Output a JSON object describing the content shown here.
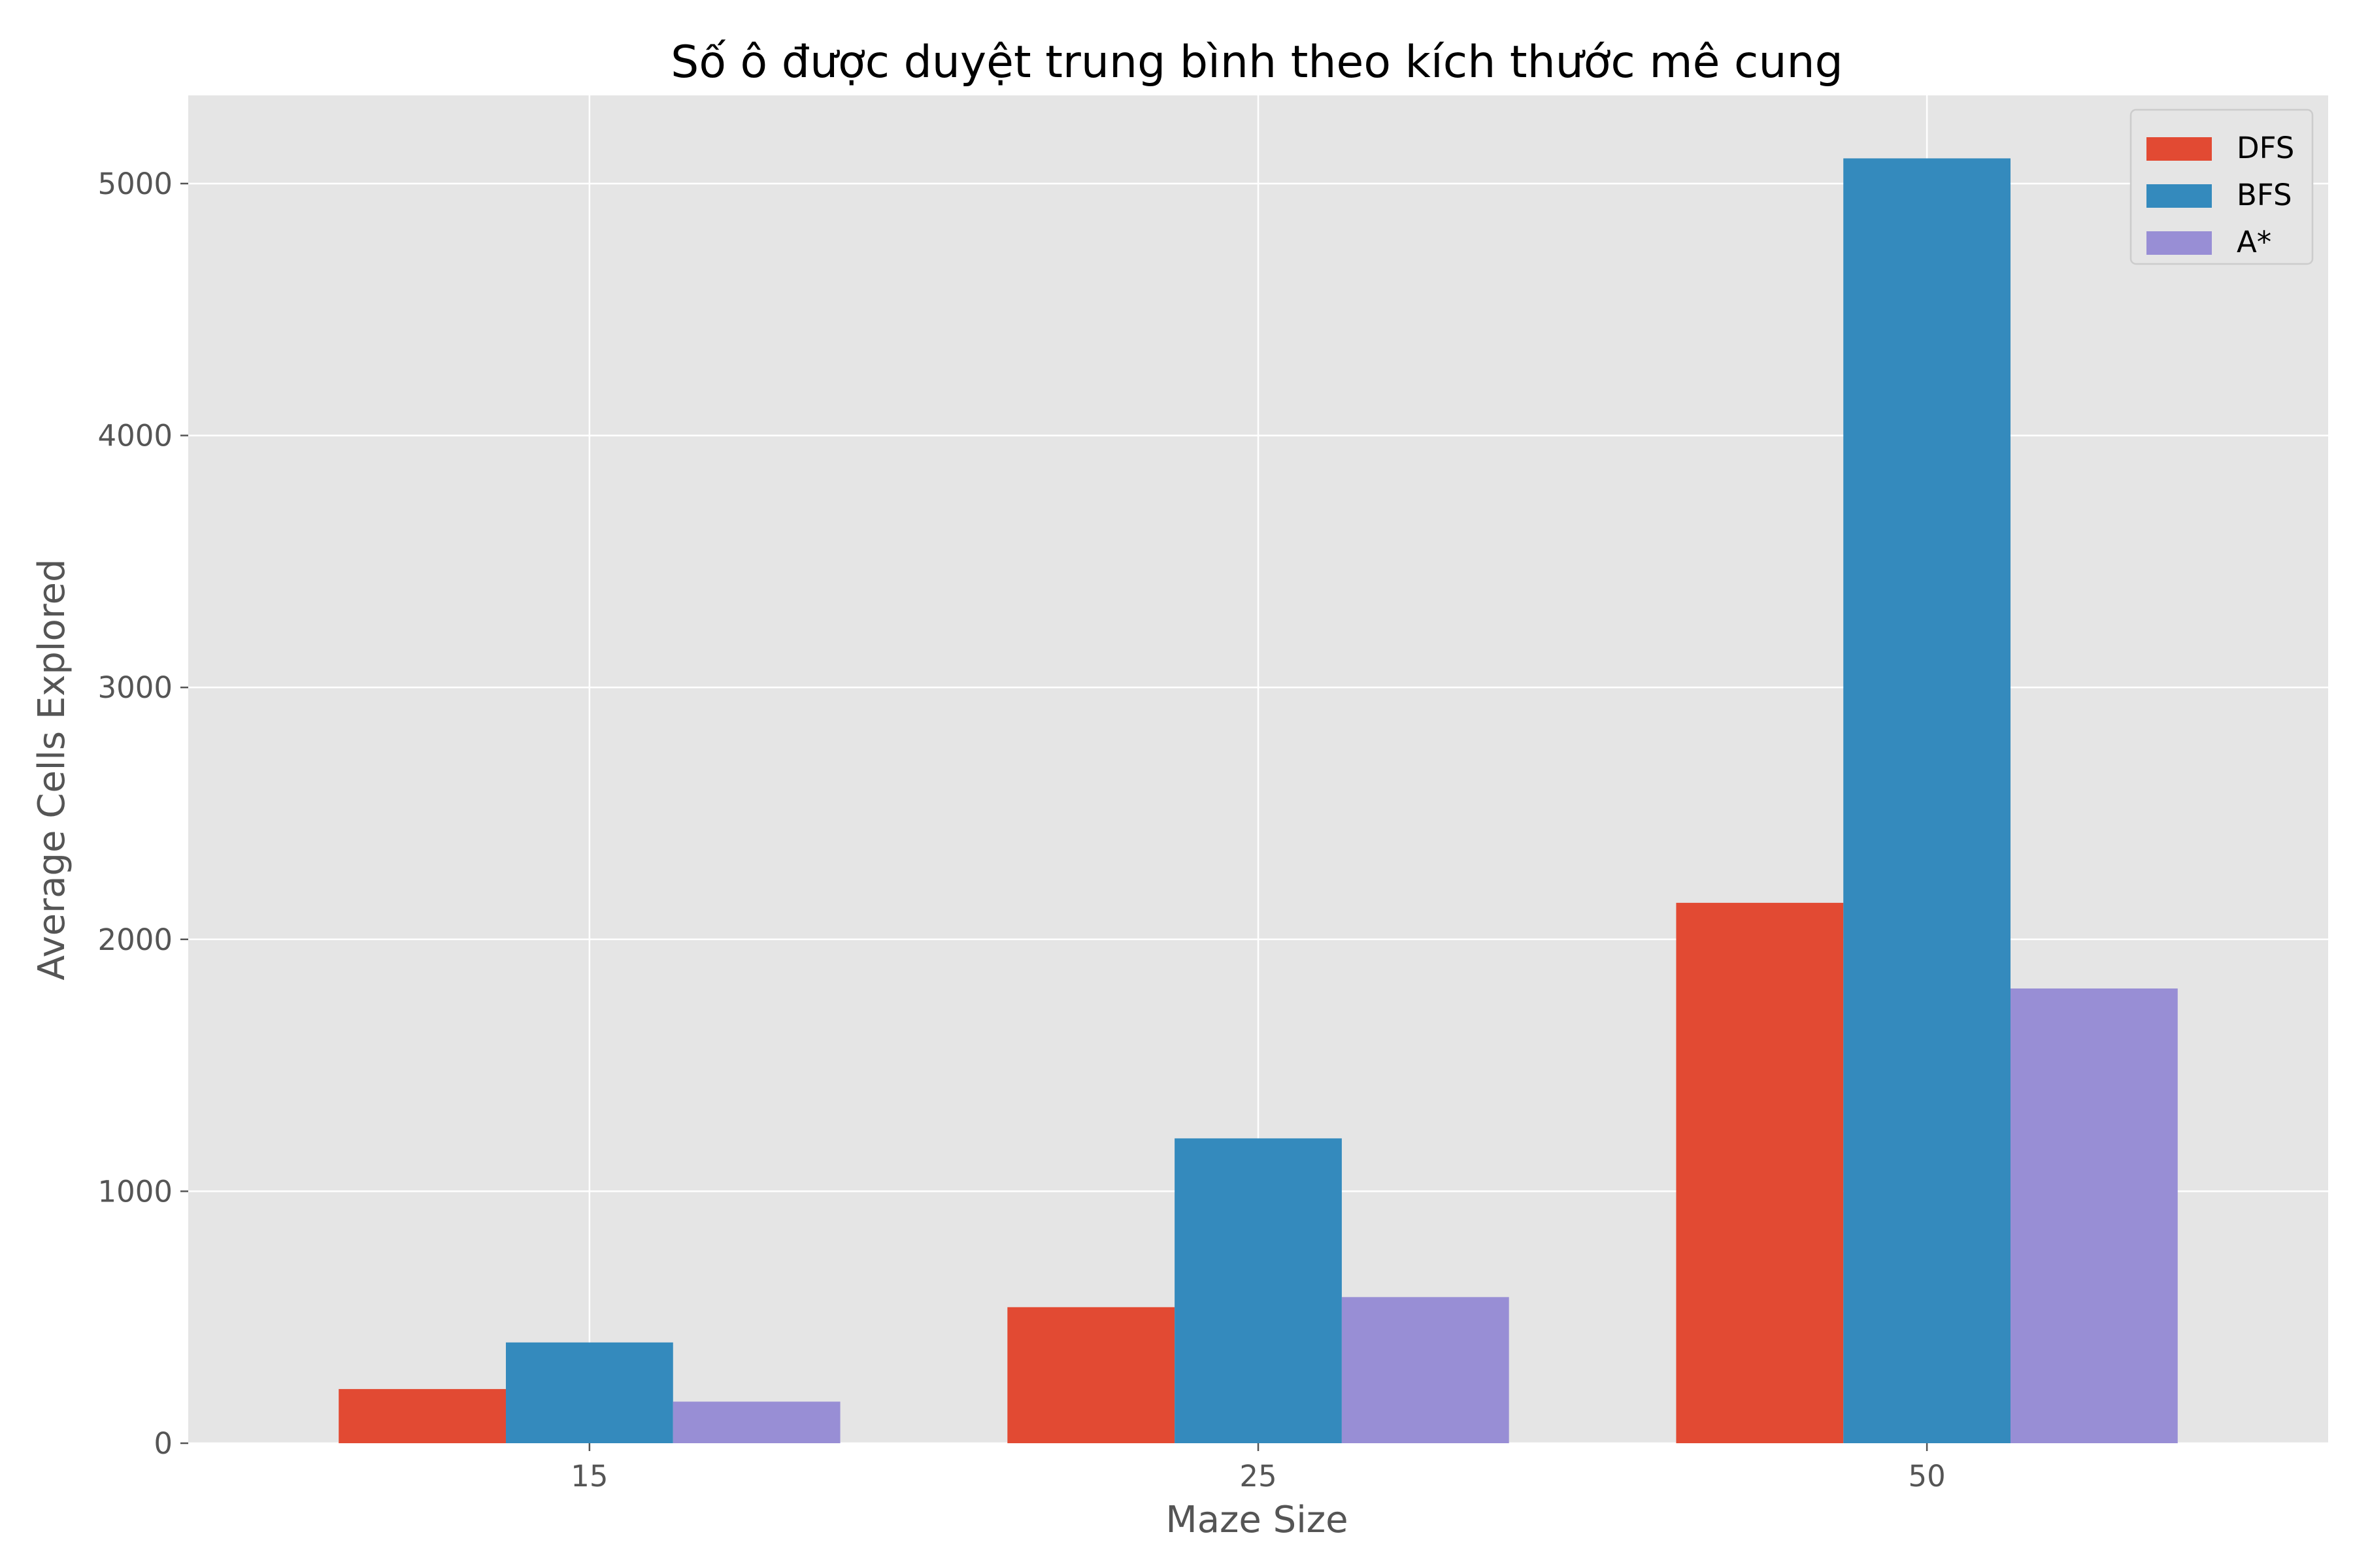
{
  "chart_data": {
    "type": "bar",
    "title": "Số ô được duyệt trung bình theo kích thước mê cung",
    "xlabel": "Maze Size",
    "ylabel": "Average Cells Explored",
    "categories": [
      "15",
      "25",
      "50"
    ],
    "series": [
      {
        "name": "DFS",
        "values": [
          215,
          540,
          2145
        ],
        "color": "#E24A33"
      },
      {
        "name": "BFS",
        "values": [
          400,
          1210,
          5100
        ],
        "color": "#348ABD"
      },
      {
        "name": "A*",
        "values": [
          165,
          580,
          1805
        ],
        "color": "#988ED5"
      }
    ],
    "ylim": [
      0,
      5350
    ],
    "yticks": [
      0,
      1000,
      2000,
      3000,
      4000,
      5000
    ],
    "grid": true,
    "legend": "top-right",
    "style": {
      "plot_background": "#E5E5E5",
      "grid_color": "#FFFFFF"
    }
  }
}
